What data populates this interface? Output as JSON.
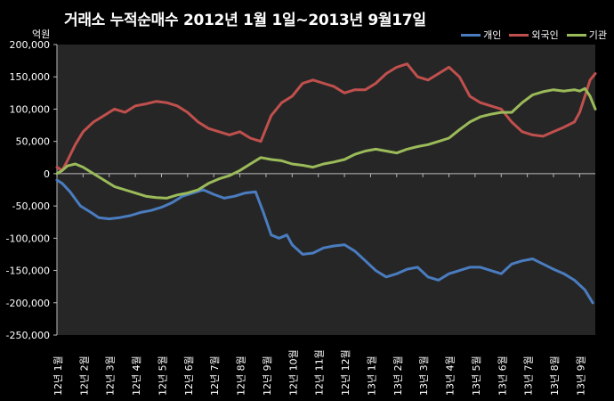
{
  "chart_data": {
    "type": "line",
    "title": "거래소  누적순매수 2012년 1월 1일~2013년 9월17일",
    "unit_label": "억원",
    "ylim": [
      -250000,
      200000
    ],
    "yticks": [
      200000,
      150000,
      100000,
      50000,
      0,
      -50000,
      -100000,
      -150000,
      -200000,
      -250000
    ],
    "ytick_labels": [
      "200,000",
      "150,000",
      "100,000",
      "50,000",
      "0",
      "-50,000",
      "-100,000",
      "-150,000",
      "-200,000",
      "-250,000"
    ],
    "x_range": [
      0,
      20.6
    ],
    "x_ticks": [
      0,
      1,
      2,
      3,
      4,
      5,
      6,
      7,
      8,
      9,
      10,
      11,
      12,
      13,
      14,
      15,
      16,
      17,
      18,
      19,
      20
    ],
    "x_tick_labels": [
      "12년 1월",
      "12년 2월",
      "12년 3월",
      "12년 4월",
      "12년 5월",
      "12년 6월",
      "12년 7월",
      "12년 8월",
      "12년 9월",
      "12년 10월",
      "12년 11월",
      "12년 12월",
      "13년 1월",
      "13년 2월",
      "13년 3월",
      "13년 4월",
      "13년 5월",
      "13년 6월",
      "13년 7월",
      "13년 8월",
      "13년 9월"
    ],
    "legend_position": "top-right",
    "grid": false,
    "series": [
      {
        "name": "개인",
        "color": "#4a7cc0",
        "x": [
          0,
          0.2,
          0.5,
          0.9,
          1.3,
          1.6,
          2.0,
          2.4,
          2.8,
          3.2,
          3.6,
          4.0,
          4.4,
          4.8,
          5.2,
          5.6,
          6.0,
          6.4,
          6.8,
          7.2,
          7.6,
          7.9,
          8.2,
          8.5,
          8.8,
          9.0,
          9.4,
          9.8,
          10.2,
          10.6,
          11.0,
          11.4,
          11.8,
          12.2,
          12.6,
          13.0,
          13.4,
          13.8,
          14.2,
          14.6,
          15.0,
          15.4,
          15.8,
          16.2,
          16.6,
          17.0,
          17.4,
          17.8,
          18.2,
          18.6,
          19.0,
          19.4,
          19.8,
          20.2,
          20.5
        ],
        "y": [
          -10000,
          -15000,
          -28000,
          -50000,
          -60000,
          -68000,
          -70000,
          -68000,
          -65000,
          -60000,
          -57000,
          -52000,
          -45000,
          -35000,
          -30000,
          -25000,
          -32000,
          -38000,
          -35000,
          -30000,
          -28000,
          -60000,
          -95000,
          -100000,
          -95000,
          -110000,
          -125000,
          -123000,
          -115000,
          -112000,
          -110000,
          -120000,
          -135000,
          -150000,
          -160000,
          -155000,
          -148000,
          -145000,
          -160000,
          -165000,
          -155000,
          -150000,
          -145000,
          -145000,
          -150000,
          -155000,
          -140000,
          -135000,
          -132000,
          -140000,
          -148000,
          -155000,
          -165000,
          -180000,
          -200000
        ]
      },
      {
        "name": "외국인",
        "color": "#c0504d",
        "x": [
          0,
          0.2,
          0.4,
          0.7,
          1.0,
          1.4,
          1.8,
          2.2,
          2.6,
          3.0,
          3.4,
          3.8,
          4.2,
          4.6,
          5.0,
          5.4,
          5.8,
          6.2,
          6.6,
          7.0,
          7.4,
          7.8,
          8.2,
          8.6,
          9.0,
          9.4,
          9.8,
          10.2,
          10.6,
          11.0,
          11.4,
          11.8,
          12.2,
          12.6,
          13.0,
          13.4,
          13.8,
          14.2,
          14.6,
          15.0,
          15.4,
          15.8,
          16.2,
          16.6,
          17.0,
          17.4,
          17.8,
          18.2,
          18.6,
          19.0,
          19.4,
          19.8,
          20.0,
          20.2,
          20.4,
          20.6
        ],
        "y": [
          10000,
          5000,
          20000,
          45000,
          65000,
          80000,
          90000,
          100000,
          95000,
          105000,
          108000,
          112000,
          110000,
          105000,
          95000,
          80000,
          70000,
          65000,
          60000,
          65000,
          55000,
          50000,
          90000,
          110000,
          120000,
          140000,
          145000,
          140000,
          135000,
          125000,
          130000,
          130000,
          140000,
          155000,
          165000,
          170000,
          150000,
          145000,
          155000,
          165000,
          150000,
          120000,
          110000,
          105000,
          100000,
          80000,
          65000,
          60000,
          58000,
          65000,
          72000,
          80000,
          95000,
          120000,
          145000,
          155000
        ]
      },
      {
        "name": "기관",
        "color": "#9bbb59",
        "x": [
          0,
          0.2,
          0.4,
          0.7,
          1.0,
          1.4,
          1.8,
          2.2,
          2.6,
          3.0,
          3.4,
          3.8,
          4.2,
          4.6,
          5.0,
          5.4,
          5.8,
          6.2,
          6.6,
          7.0,
          7.4,
          7.8,
          8.2,
          8.6,
          9.0,
          9.4,
          9.8,
          10.2,
          10.6,
          11.0,
          11.4,
          11.8,
          12.2,
          12.6,
          13.0,
          13.4,
          13.8,
          14.2,
          14.6,
          15.0,
          15.4,
          15.8,
          16.2,
          16.6,
          17.0,
          17.4,
          17.8,
          18.2,
          18.6,
          19.0,
          19.4,
          19.8,
          20.0,
          20.2,
          20.4,
          20.6
        ],
        "y": [
          0,
          5000,
          12000,
          15000,
          10000,
          0,
          -10000,
          -20000,
          -25000,
          -30000,
          -35000,
          -37000,
          -38000,
          -33000,
          -30000,
          -25000,
          -15000,
          -8000,
          -3000,
          5000,
          15000,
          25000,
          22000,
          20000,
          15000,
          13000,
          10000,
          15000,
          18000,
          22000,
          30000,
          35000,
          38000,
          35000,
          32000,
          38000,
          42000,
          45000,
          50000,
          55000,
          68000,
          80000,
          88000,
          92000,
          95000,
          95000,
          110000,
          122000,
          127000,
          130000,
          128000,
          130000,
          128000,
          132000,
          120000,
          100000
        ]
      }
    ]
  }
}
